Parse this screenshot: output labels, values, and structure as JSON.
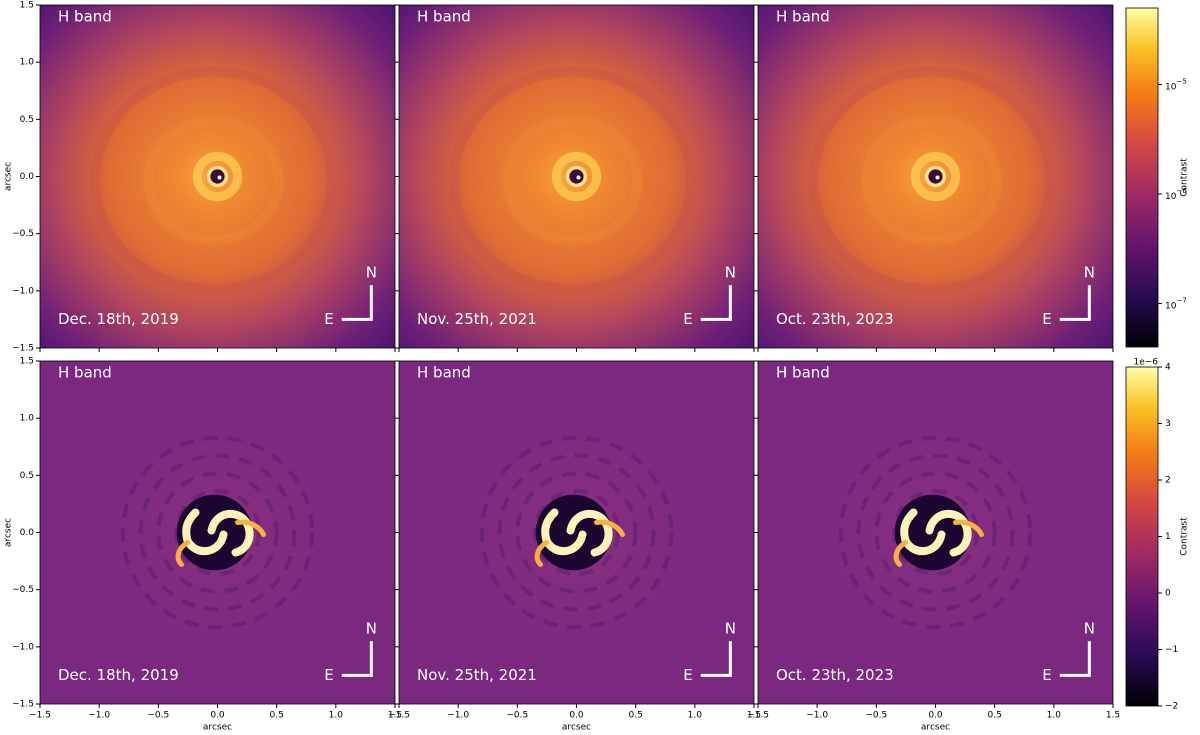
{
  "chart_data": [
    {
      "type": "image",
      "colormap": "inferno",
      "title": "H band",
      "annotation": "Dec. 18th, 2019",
      "compass": [
        "N",
        "E"
      ],
      "xlim": [
        -1.5,
        1.5
      ],
      "ylim": [
        -1.5,
        1.5
      ],
      "ylabel": "arcsec",
      "xticks": [
        -1.5,
        -1,
        -0.5,
        0,
        0.5,
        1,
        1.5
      ],
      "yticks": [
        {
          "value": -1.5,
          "label": "−1.5"
        },
        {
          "value": -1,
          "label": "−1.0"
        },
        {
          "value": -0.5,
          "label": "−0.5"
        },
        {
          "value": 0,
          "label": "0.0"
        },
        {
          "value": 0.5,
          "label": "0.5"
        },
        {
          "value": 1,
          "label": "1.0"
        },
        {
          "value": 1.5,
          "label": "1.5"
        }
      ]
    },
    {
      "type": "image",
      "colormap": "inferno",
      "title": "H band",
      "annotation": "Nov. 25th, 2021",
      "compass": [
        "N",
        "E"
      ],
      "xlim": [
        -1.5,
        1.5
      ],
      "ylim": [
        -1.5,
        1.5
      ],
      "xticks": [
        -1.5,
        -1,
        -0.5,
        0,
        0.5,
        1,
        1.5
      ],
      "yticks": [
        -1.5,
        -1,
        -0.5,
        0,
        0.5,
        1,
        1.5
      ]
    },
    {
      "type": "image",
      "colormap": "inferno",
      "title": "H band",
      "annotation": "Oct. 23th, 2023",
      "compass": [
        "N",
        "E"
      ],
      "xlim": [
        -1.5,
        1.5
      ],
      "ylim": [
        -1.5,
        1.5
      ],
      "xticks": [
        -1.5,
        -1,
        -0.5,
        0,
        0.5,
        1,
        1.5
      ],
      "yticks": [
        -1.5,
        -1,
        -0.5,
        0,
        0.5,
        1,
        1.5
      ]
    },
    {
      "type": "image",
      "colormap": "inferno",
      "title": "H band",
      "annotation": "Dec. 18th, 2019",
      "compass": [
        "N",
        "E"
      ],
      "xlim": [
        -1.5,
        1.5
      ],
      "ylim": [
        -1.5,
        1.5
      ],
      "xlabel": "arcsec",
      "ylabel": "arcsec",
      "xticks": [
        {
          "value": -1.5,
          "label": "−1.5"
        },
        {
          "value": -1,
          "label": "−1.0"
        },
        {
          "value": -0.5,
          "label": "−0.5"
        },
        {
          "value": 0,
          "label": "0.0"
        },
        {
          "value": 0.5,
          "label": "0.5"
        },
        {
          "value": 1,
          "label": "1.0"
        },
        {
          "value": 1.5,
          "label": "1.5"
        }
      ],
      "yticks": [
        {
          "value": -1.5,
          "label": "−1.5"
        },
        {
          "value": -1,
          "label": "−1.0"
        },
        {
          "value": -0.5,
          "label": "−0.5"
        },
        {
          "value": 0,
          "label": "0.0"
        },
        {
          "value": 0.5,
          "label": "0.5"
        },
        {
          "value": 1,
          "label": "1.0"
        },
        {
          "value": 1.5,
          "label": "1.5"
        }
      ]
    },
    {
      "type": "image",
      "colormap": "inferno",
      "title": "H band",
      "annotation": "Nov. 25th, 2021",
      "compass": [
        "N",
        "E"
      ],
      "xlim": [
        -1.5,
        1.5
      ],
      "ylim": [
        -1.5,
        1.5
      ],
      "xlabel": "arcsec",
      "xticks": [
        {
          "value": -1.5,
          "label": "−1.5"
        },
        {
          "value": -1,
          "label": "−1.0"
        },
        {
          "value": -0.5,
          "label": "−0.5"
        },
        {
          "value": 0,
          "label": "0.0"
        },
        {
          "value": 0.5,
          "label": "0.5"
        },
        {
          "value": 1,
          "label": "1.0"
        },
        {
          "value": 1.5,
          "label": "1.5"
        }
      ],
      "yticks": [
        -1.5,
        -1,
        -0.5,
        0,
        0.5,
        1,
        1.5
      ]
    },
    {
      "type": "image",
      "colormap": "inferno",
      "title": "H band",
      "annotation": "Oct. 23th, 2023",
      "compass": [
        "N",
        "E"
      ],
      "xlim": [
        -1.5,
        1.5
      ],
      "ylim": [
        -1.5,
        1.5
      ],
      "xlabel": "arcsec",
      "xticks": [
        {
          "value": -1.5,
          "label": "−1.5"
        },
        {
          "value": -1,
          "label": "−1.0"
        },
        {
          "value": -0.5,
          "label": "−0.5"
        },
        {
          "value": 0,
          "label": "0.0"
        },
        {
          "value": 0.5,
          "label": "0.5"
        },
        {
          "value": 1,
          "label": "1.0"
        },
        {
          "value": 1.5,
          "label": "1.5"
        }
      ],
      "yticks": [
        -1.5,
        -1,
        -0.5,
        0,
        0.5,
        1,
        1.5
      ]
    },
    {
      "type": "colorbar",
      "colormap": "inferno",
      "label": "Contrast",
      "log": true,
      "clim": [
        4e-08,
        5e-05
      ],
      "ticks": [
        {
          "value": 1e-07,
          "base": "10",
          "exponent": "−7"
        },
        {
          "value": 1e-06,
          "base": "10",
          "exponent": "−6"
        },
        {
          "value": 1e-05,
          "base": "10",
          "exponent": "−5"
        }
      ]
    },
    {
      "type": "colorbar",
      "colormap": "inferno",
      "label": "Contrast",
      "log": false,
      "offset": "1e−6",
      "clim": [
        -2,
        4
      ],
      "ticks": [
        {
          "value": -2,
          "label": "−2"
        },
        {
          "value": -1,
          "label": "−1"
        },
        0,
        1,
        2,
        3,
        4
      ]
    }
  ]
}
